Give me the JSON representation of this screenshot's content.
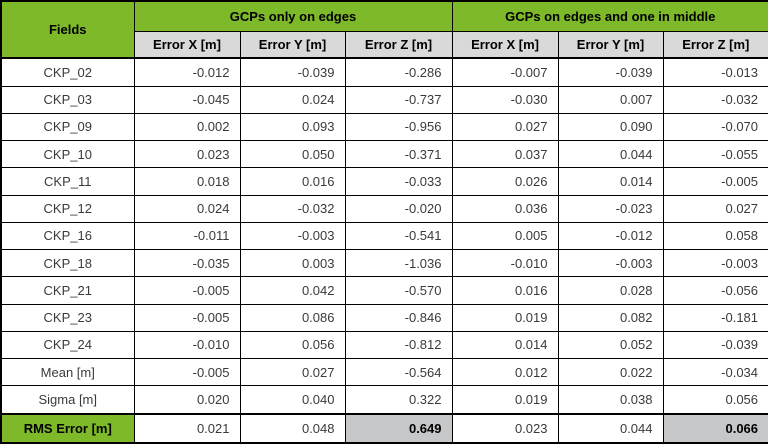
{
  "colors": {
    "header_green": "#7DB928",
    "subheader_gray": "#D9D9D9",
    "highlight_gray": "#C6C7C8",
    "border_black": "#000000",
    "text_dark": "#3A3A3A"
  },
  "chart_data": {
    "type": "table",
    "corner_header": "Fields",
    "group_headers": [
      "GCPs only on edges",
      "GCPs on edges and one in middle"
    ],
    "sub_headers": [
      "Error X [m]",
      "Error Y [m]",
      "Error Z [m]",
      "Error X [m]",
      "Error Y [m]",
      "Error Z [m]"
    ],
    "rows": [
      {
        "label": "CKP_02",
        "values": [
          "-0.012",
          "-0.039",
          "-0.286",
          "-0.007",
          "-0.039",
          "-0.013"
        ]
      },
      {
        "label": "CKP_03",
        "values": [
          "-0.045",
          "0.024",
          "-0.737",
          "-0.030",
          "0.007",
          "-0.032"
        ]
      },
      {
        "label": "CKP_09",
        "values": [
          "0.002",
          "0.093",
          "-0.956",
          "0.027",
          "0.090",
          "-0.070"
        ]
      },
      {
        "label": "CKP_10",
        "values": [
          "0.023",
          "0.050",
          "-0.371",
          "0.037",
          "0.044",
          "-0.055"
        ]
      },
      {
        "label": "CKP_11",
        "values": [
          "0.018",
          "0.016",
          "-0.033",
          "0.026",
          "0.014",
          "-0.005"
        ]
      },
      {
        "label": "CKP_12",
        "values": [
          "0.024",
          "-0.032",
          "-0.020",
          "0.036",
          "-0.023",
          "0.027"
        ]
      },
      {
        "label": "CKP_16",
        "values": [
          "-0.011",
          "-0.003",
          "-0.541",
          "0.005",
          "-0.012",
          "0.058"
        ]
      },
      {
        "label": "CKP_18",
        "values": [
          "-0.035",
          "0.003",
          "-1.036",
          "-0.010",
          "-0.003",
          "-0.003"
        ]
      },
      {
        "label": "CKP_21",
        "values": [
          "-0.005",
          "0.042",
          "-0.570",
          "0.016",
          "0.028",
          "-0.056"
        ]
      },
      {
        "label": "CKP_23",
        "values": [
          "-0.005",
          "0.086",
          "-0.846",
          "0.019",
          "0.082",
          "-0.181"
        ]
      },
      {
        "label": "CKP_24",
        "values": [
          "-0.010",
          "0.056",
          "-0.812",
          "0.014",
          "0.052",
          "-0.039"
        ]
      },
      {
        "label": "Mean [m]",
        "values": [
          "-0.005",
          "0.027",
          "-0.564",
          "0.012",
          "0.022",
          "-0.034"
        ]
      },
      {
        "label": "Sigma [m]",
        "values": [
          "0.020",
          "0.040",
          "0.322",
          "0.019",
          "0.038",
          "0.056"
        ]
      },
      {
        "label": "RMS Error [m]",
        "values": [
          "0.021",
          "0.048",
          "0.649",
          "0.023",
          "0.044",
          "0.066"
        ],
        "label_highlight": true,
        "value_highlight_cols": [
          2,
          5
        ]
      }
    ]
  }
}
